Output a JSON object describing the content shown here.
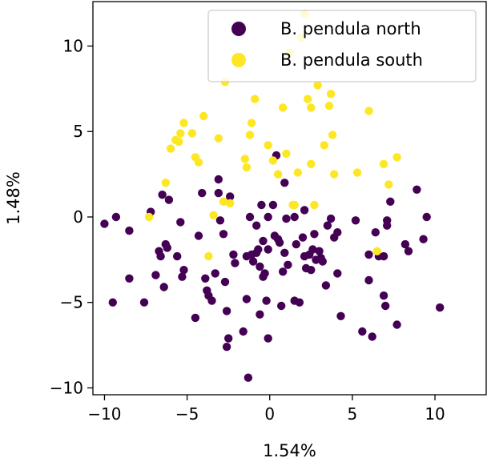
{
  "chart_data": {
    "type": "scatter",
    "title": "",
    "xlabel": "1.54%",
    "ylabel": "1.48%",
    "xlim": [
      -10.7,
      13.1
    ],
    "ylim": [
      -10.4,
      12.6
    ],
    "xticks": [
      -10,
      -5,
      0,
      5,
      10
    ],
    "yticks": [
      -10,
      -5,
      0,
      5,
      10
    ],
    "xtick_labels": [
      "−10",
      "−5",
      "0",
      "5",
      "10"
    ],
    "ytick_labels": [
      "−10",
      "−5",
      "0",
      "5",
      "10"
    ],
    "grid": false,
    "legend_position": "upper-right",
    "series": [
      {
        "name": "B. pendula north",
        "color": "#440154",
        "points": [
          [
            -10.0,
            -0.4
          ],
          [
            -9.5,
            -5.0
          ],
          [
            -9.3,
            0.0
          ],
          [
            -8.5,
            -0.8
          ],
          [
            -8.5,
            -3.6
          ],
          [
            -7.6,
            -5.0
          ],
          [
            -7.2,
            0.3
          ],
          [
            -6.9,
            -3.4
          ],
          [
            -6.7,
            -2.0
          ],
          [
            -6.6,
            -2.3
          ],
          [
            -6.5,
            1.3
          ],
          [
            -6.4,
            -4.1
          ],
          [
            -6.3,
            -1.6
          ],
          [
            -6.2,
            -1.8
          ],
          [
            -6.1,
            1.0
          ],
          [
            -5.6,
            -2.3
          ],
          [
            -5.4,
            -0.3
          ],
          [
            -5.3,
            -3.5
          ],
          [
            -5.2,
            -3.1
          ],
          [
            -4.5,
            -5.9
          ],
          [
            -4.3,
            -1.1
          ],
          [
            -4.1,
            1.4
          ],
          [
            -3.9,
            -3.6
          ],
          [
            -3.8,
            -4.3
          ],
          [
            -3.7,
            -4.6
          ],
          [
            -3.5,
            -4.9
          ],
          [
            -3.3,
            -3.3
          ],
          [
            -3.1,
            2.2
          ],
          [
            -3.1,
            1.4
          ],
          [
            -3.0,
            -0.2
          ],
          [
            -2.8,
            -1.0
          ],
          [
            -2.7,
            -3.8
          ],
          [
            -2.6,
            -7.6
          ],
          [
            -2.6,
            -5.5
          ],
          [
            -2.5,
            -7.1
          ],
          [
            -2.4,
            1.2
          ],
          [
            -2.2,
            -2.2
          ],
          [
            -2.1,
            -2.7
          ],
          [
            -1.6,
            -6.7
          ],
          [
            -1.4,
            -4.8
          ],
          [
            -1.4,
            -2.3
          ],
          [
            -1.3,
            -9.4
          ],
          [
            -1.2,
            0.0
          ],
          [
            -1.1,
            -2.2
          ],
          [
            -1.0,
            -2.6
          ],
          [
            -0.8,
            -0.5
          ],
          [
            -0.8,
            -2.1
          ],
          [
            -0.7,
            -1.9
          ],
          [
            -0.6,
            -5.7
          ],
          [
            -0.6,
            -2.9
          ],
          [
            -0.5,
            0.7
          ],
          [
            -0.4,
            -1.4
          ],
          [
            -0.4,
            -3.5
          ],
          [
            -0.3,
            -3.3
          ],
          [
            -0.2,
            -4.9
          ],
          [
            -0.1,
            -7.1
          ],
          [
            -0.1,
            -1.9
          ],
          [
            -0.1,
            0.0
          ],
          [
            0.2,
            0.7
          ],
          [
            0.3,
            -1.1
          ],
          [
            0.4,
            3.6
          ],
          [
            0.5,
            -1.3
          ],
          [
            0.6,
            -1.5
          ],
          [
            0.7,
            -5.2
          ],
          [
            0.8,
            -3.2
          ],
          [
            0.9,
            -2.1
          ],
          [
            0.9,
            2.0
          ],
          [
            1.0,
            -0.1
          ],
          [
            1.1,
            -2.8
          ],
          [
            1.5,
            -4.9
          ],
          [
            1.5,
            0.0
          ],
          [
            1.6,
            -1.6
          ],
          [
            1.8,
            -5.0
          ],
          [
            2.0,
            -1.2
          ],
          [
            2.1,
            0.4
          ],
          [
            2.1,
            -2.3
          ],
          [
            2.2,
            -3.0
          ],
          [
            2.4,
            -2.2
          ],
          [
            2.5,
            -3.1
          ],
          [
            2.6,
            -1.9
          ],
          [
            2.7,
            -1.0
          ],
          [
            2.8,
            -2.5
          ],
          [
            3.0,
            -2.0
          ],
          [
            3.1,
            -2.4
          ],
          [
            3.2,
            -2.6
          ],
          [
            3.4,
            -4.0
          ],
          [
            3.5,
            -0.5
          ],
          [
            3.7,
            -0.1
          ],
          [
            3.9,
            -1.2
          ],
          [
            4.1,
            -0.9
          ],
          [
            4.1,
            -3.3
          ],
          [
            4.3,
            -5.8
          ],
          [
            5.2,
            -0.2
          ],
          [
            5.6,
            -6.7
          ],
          [
            6.0,
            -2.2
          ],
          [
            6.0,
            -3.7
          ],
          [
            6.2,
            -7.0
          ],
          [
            6.4,
            -0.9
          ],
          [
            6.6,
            -2.3
          ],
          [
            6.9,
            -2.3
          ],
          [
            6.9,
            -4.6
          ],
          [
            7.0,
            -5.2
          ],
          [
            7.1,
            -0.2
          ],
          [
            7.1,
            -0.5
          ],
          [
            7.3,
            0.9
          ],
          [
            7.7,
            -6.3
          ],
          [
            8.2,
            -1.6
          ],
          [
            8.4,
            -2.0
          ],
          [
            8.9,
            1.6
          ],
          [
            9.3,
            -1.3
          ],
          [
            9.5,
            0.0
          ],
          [
            10.3,
            -5.3
          ]
        ]
      },
      {
        "name": "B. pendula south",
        "color": "#fde725",
        "points": [
          [
            -7.3,
            0.0
          ],
          [
            -6.3,
            2.0
          ],
          [
            -6.0,
            4.0
          ],
          [
            -5.7,
            4.5
          ],
          [
            -5.5,
            4.4
          ],
          [
            -5.4,
            4.9
          ],
          [
            -5.2,
            5.5
          ],
          [
            -4.7,
            4.9
          ],
          [
            -4.5,
            3.5
          ],
          [
            -4.3,
            3.2
          ],
          [
            -4.0,
            5.9
          ],
          [
            -3.7,
            -2.3
          ],
          [
            -3.4,
            0.1
          ],
          [
            -3.1,
            4.6
          ],
          [
            -2.8,
            0.9
          ],
          [
            -2.7,
            7.9
          ],
          [
            -2.4,
            0.8
          ],
          [
            -1.5,
            3.4
          ],
          [
            -1.4,
            2.9
          ],
          [
            -1.2,
            4.8
          ],
          [
            -1.1,
            5.5
          ],
          [
            -0.9,
            6.9
          ],
          [
            -0.1,
            4.2
          ],
          [
            0.2,
            3.3
          ],
          [
            0.5,
            2.5
          ],
          [
            0.8,
            6.4
          ],
          [
            1.0,
            3.7
          ],
          [
            1.2,
            9.6
          ],
          [
            1.5,
            0.7
          ],
          [
            1.7,
            2.6
          ],
          [
            1.9,
            10.5
          ],
          [
            2.1,
            11.9
          ],
          [
            2.3,
            6.9
          ],
          [
            2.5,
            6.4
          ],
          [
            2.5,
            3.1
          ],
          [
            2.7,
            0.7
          ],
          [
            2.9,
            7.7
          ],
          [
            3.3,
            4.2
          ],
          [
            3.6,
            6.5
          ],
          [
            3.7,
            7.2
          ],
          [
            3.8,
            4.8
          ],
          [
            3.9,
            2.5
          ],
          [
            5.3,
            2.6
          ],
          [
            6.0,
            6.2
          ],
          [
            6.5,
            -2.0
          ],
          [
            6.9,
            3.1
          ],
          [
            7.2,
            1.9
          ],
          [
            7.7,
            3.5
          ],
          [
            1.4,
            0.7
          ]
        ]
      }
    ]
  }
}
